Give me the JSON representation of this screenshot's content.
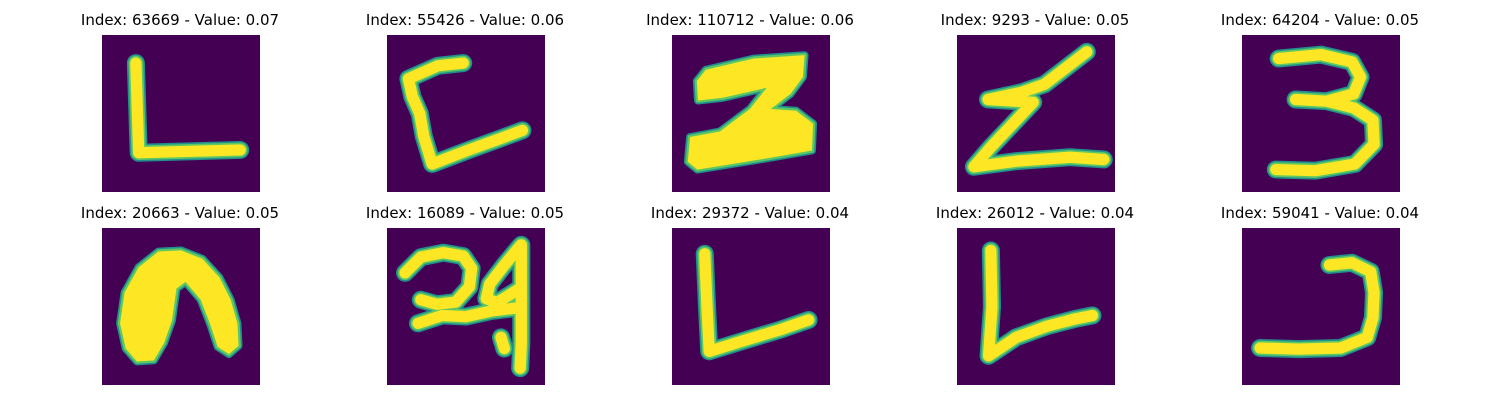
{
  "colors": {
    "background": "#440154",
    "edge_dark": "#21908C",
    "edge_light": "#5DC863",
    "foreground": "#FDE725"
  },
  "panels": [
    {
      "title": "Index: 63669 - Value: 0.07",
      "glyph": "L"
    },
    {
      "title": "Index: 55426 - Value: 0.06",
      "glyph": "C"
    },
    {
      "title": "Index: 110712 - Value: 0.06",
      "glyph": "2"
    },
    {
      "title": "Index: 9293 - Value: 0.05",
      "glyph": "Z"
    },
    {
      "title": "Index: 64204 - Value: 0.05",
      "glyph": "3"
    },
    {
      "title": "Index: 20663 - Value: 0.05",
      "glyph": "n"
    },
    {
      "title": "Index: 16089 - Value: 0.05",
      "glyph": "24"
    },
    {
      "title": "Index: 29372 - Value: 0.04",
      "glyph": "L"
    },
    {
      "title": "Index: 26012 - Value: 0.04",
      "glyph": "L"
    },
    {
      "title": "Index: 59041 - Value: 0.04",
      "glyph": "J"
    }
  ]
}
